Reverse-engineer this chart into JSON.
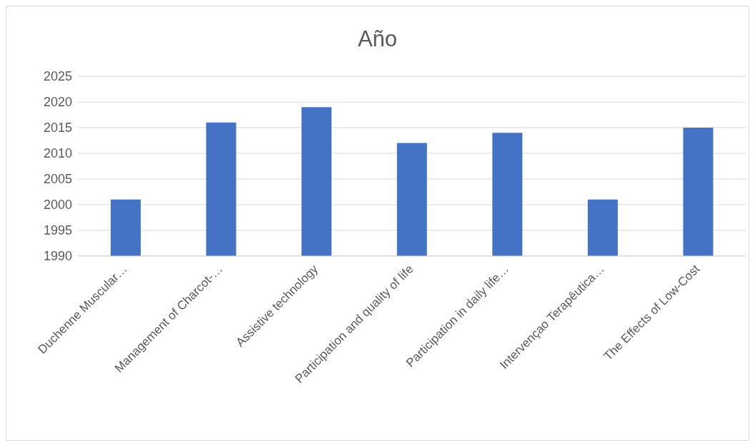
{
  "chart_data": {
    "type": "bar",
    "title": "Año",
    "categories": [
      "Duchenne Muscular…",
      "Management of Charcot-…",
      "Assistive technology",
      "Participation and quality of life",
      "Participation in daily life…",
      "Intervençao Terapêutica…",
      "The Effects of Low-Cost"
    ],
    "values": [
      2001,
      2016,
      2019,
      2012,
      2014,
      2001,
      2015
    ],
    "color": "#4472c4",
    "ylim": [
      1990,
      2025
    ],
    "yticks": [
      1990,
      1995,
      2000,
      2005,
      2010,
      2015,
      2020,
      2025
    ],
    "grid": "y"
  }
}
